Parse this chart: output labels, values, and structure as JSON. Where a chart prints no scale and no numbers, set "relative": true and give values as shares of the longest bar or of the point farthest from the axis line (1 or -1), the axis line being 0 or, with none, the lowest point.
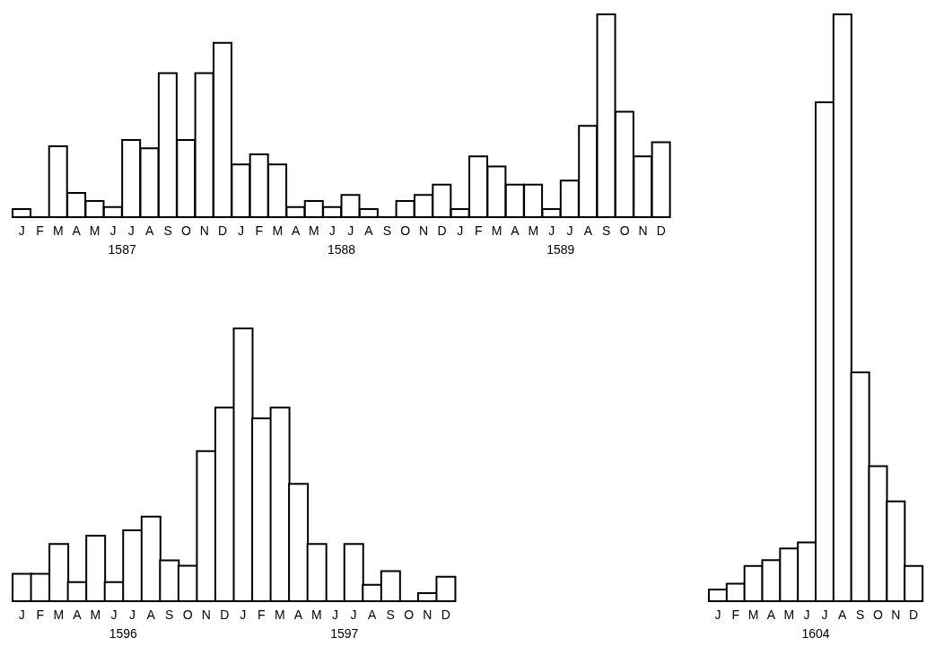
{
  "chart_data": [
    {
      "type": "bar",
      "relative": true,
      "categories": [
        "J",
        "F",
        "M",
        "A",
        "M",
        "J",
        "J",
        "A",
        "S",
        "O",
        "N",
        "D",
        "J",
        "F",
        "M",
        "A",
        "M",
        "J",
        "J",
        "A",
        "S",
        "O",
        "N",
        "D",
        "J",
        "F",
        "M",
        "A",
        "M",
        "J",
        "J",
        "A",
        "S",
        "O",
        "N",
        "D"
      ],
      "values": [
        0.04,
        0,
        0.35,
        0.12,
        0.08,
        0.05,
        0.38,
        0.34,
        0.71,
        0.38,
        0.71,
        0.86,
        0.26,
        0.31,
        0.26,
        0.05,
        0.08,
        0.05,
        0.11,
        0.04,
        0,
        0.08,
        0.11,
        0.16,
        0.04,
        0.3,
        0.25,
        0.16,
        0.16,
        0.04,
        0.18,
        0.45,
        1.0,
        0.52,
        0.3,
        0.37
      ],
      "color": "#ffffff",
      "annotations": [
        "1587",
        "1588",
        "1589"
      ]
    },
    {
      "type": "bar",
      "relative": true,
      "categories": [
        "J",
        "F",
        "M",
        "A",
        "M",
        "J",
        "J",
        "A",
        "S",
        "O",
        "N",
        "D",
        "J",
        "F",
        "M",
        "A",
        "M",
        "J",
        "J",
        "A",
        "S",
        "O",
        "N",
        "D"
      ],
      "values": [
        0.1,
        0.1,
        0.21,
        0.07,
        0.24,
        0.07,
        0.26,
        0.31,
        0.15,
        0.13,
        0.55,
        0.71,
        1.0,
        0.67,
        0.71,
        0.43,
        0.21,
        0,
        0.21,
        0.06,
        0.11,
        0,
        0.03,
        0.09
      ],
      "color": "#ffffff",
      "annotations": [
        "1596",
        "1597"
      ]
    },
    {
      "type": "bar",
      "relative": true,
      "categories": [
        "J",
        "F",
        "M",
        "A",
        "M",
        "J",
        "J",
        "A",
        "S",
        "O",
        "N",
        "D"
      ],
      "values": [
        0.02,
        0.03,
        0.06,
        0.07,
        0.09,
        0.1,
        0.85,
        1.0,
        0.39,
        0.23,
        0.17,
        0.06
      ],
      "color": "#ffffff",
      "annotations": [
        "1604"
      ]
    }
  ]
}
